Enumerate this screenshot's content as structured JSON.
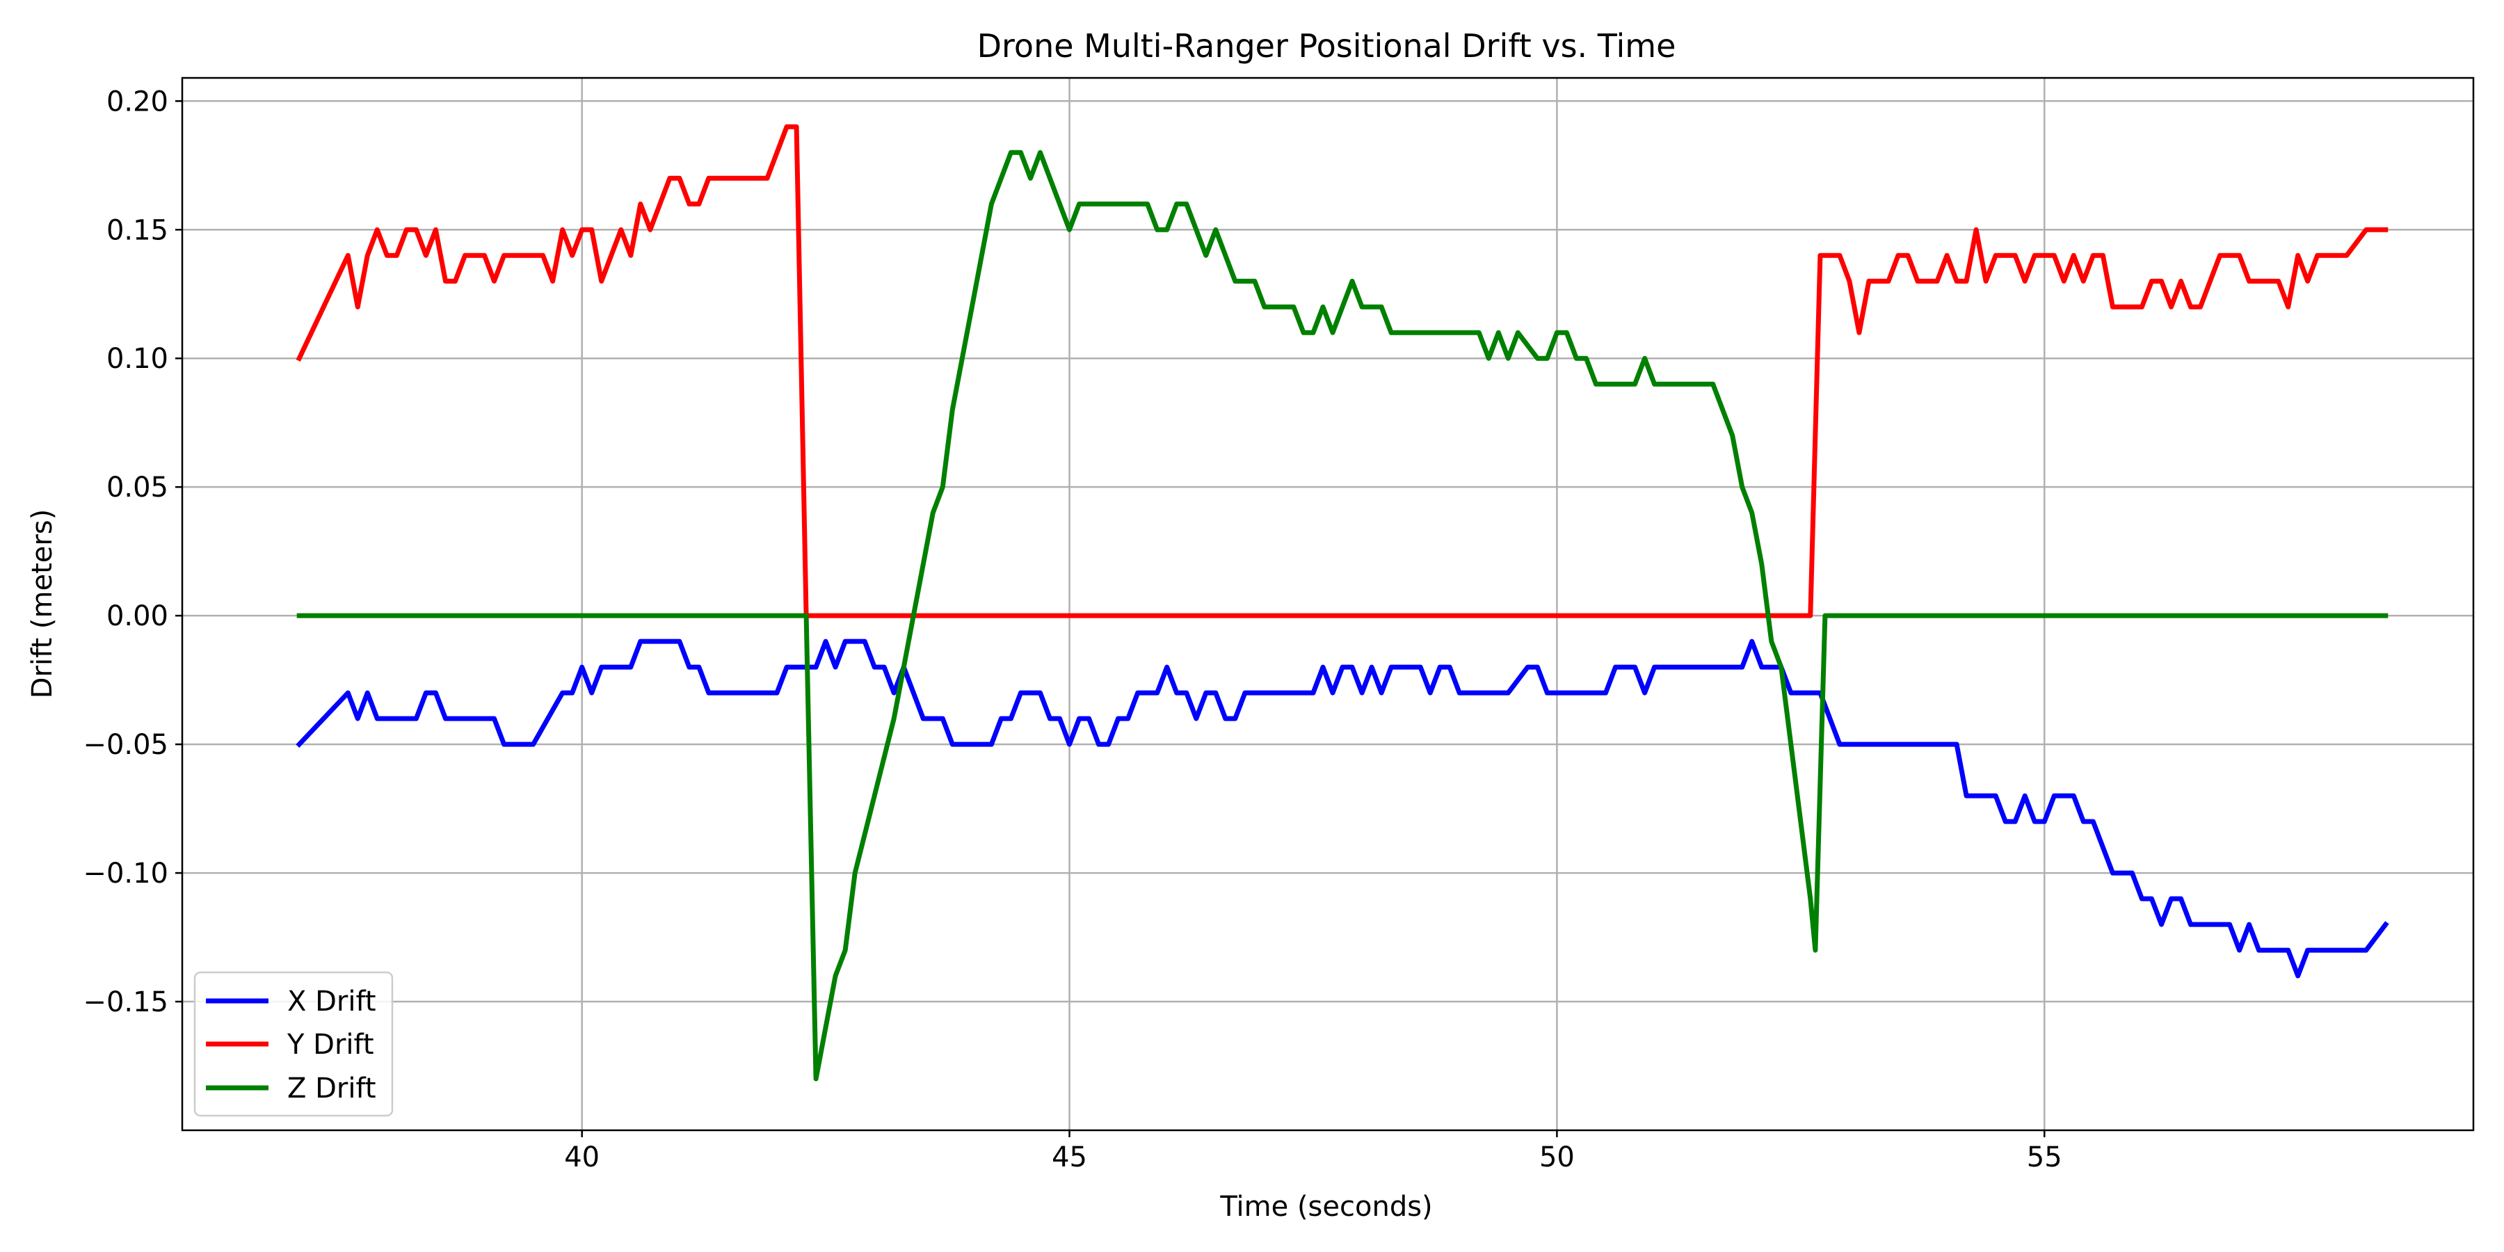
{
  "chart_data": {
    "type": "line",
    "title": "Drone Multi-Ranger Positional Drift vs. Time",
    "xlabel": "Time (seconds)",
    "ylabel": "Drift (meters)",
    "xlim": [
      35.9,
      59.4
    ],
    "ylim": [
      -0.2,
      0.209
    ],
    "xticks": [
      40,
      45,
      50,
      55
    ],
    "xtick_labels": [
      "40",
      "45",
      "50",
      "55"
    ],
    "yticks": [
      0.2,
      0.15,
      0.1,
      0.05,
      0.0,
      -0.05,
      -0.1,
      -0.15
    ],
    "ytick_labels": [
      "0.20",
      "0.15",
      "0.10",
      "0.05",
      "0.00",
      "−0.05",
      "−0.10",
      "−0.15"
    ],
    "grid": true,
    "legend_position": "bottom-left",
    "series": [
      {
        "name": "X Drift",
        "color": "#0000ff",
        "points": [
          [
            37.1,
            -0.05
          ],
          [
            37.6,
            -0.03
          ],
          [
            37.7,
            -0.04
          ],
          [
            37.8,
            -0.03
          ],
          [
            37.9,
            -0.04
          ],
          [
            38.3,
            -0.04
          ],
          [
            38.4,
            -0.03
          ],
          [
            38.5,
            -0.03
          ],
          [
            38.6,
            -0.04
          ],
          [
            39.1,
            -0.04
          ],
          [
            39.2,
            -0.05
          ],
          [
            39.5,
            -0.05
          ],
          [
            39.8,
            -0.03
          ],
          [
            39.9,
            -0.03
          ],
          [
            40.0,
            -0.02
          ],
          [
            40.1,
            -0.03
          ],
          [
            40.2,
            -0.02
          ],
          [
            40.5,
            -0.02
          ],
          [
            40.6,
            -0.01
          ],
          [
            41.0,
            -0.01
          ],
          [
            41.1,
            -0.02
          ],
          [
            41.2,
            -0.02
          ],
          [
            41.3,
            -0.03
          ],
          [
            42.0,
            -0.03
          ],
          [
            42.1,
            -0.02
          ],
          [
            42.4,
            -0.02
          ],
          [
            42.5,
            -0.01
          ],
          [
            42.6,
            -0.02
          ],
          [
            42.7,
            -0.01
          ],
          [
            42.9,
            -0.01
          ],
          [
            43.0,
            -0.02
          ],
          [
            43.1,
            -0.02
          ],
          [
            43.2,
            -0.03
          ],
          [
            43.3,
            -0.02
          ],
          [
            43.5,
            -0.04
          ],
          [
            43.7,
            -0.04
          ],
          [
            43.8,
            -0.05
          ],
          [
            44.2,
            -0.05
          ],
          [
            44.3,
            -0.04
          ],
          [
            44.4,
            -0.04
          ],
          [
            44.5,
            -0.03
          ],
          [
            44.7,
            -0.03
          ],
          [
            44.8,
            -0.04
          ],
          [
            44.9,
            -0.04
          ],
          [
            45.0,
            -0.05
          ],
          [
            45.1,
            -0.04
          ],
          [
            45.2,
            -0.04
          ],
          [
            45.3,
            -0.05
          ],
          [
            45.4,
            -0.05
          ],
          [
            45.5,
            -0.04
          ],
          [
            45.6,
            -0.04
          ],
          [
            45.7,
            -0.03
          ],
          [
            45.9,
            -0.03
          ],
          [
            46.0,
            -0.02
          ],
          [
            46.1,
            -0.03
          ],
          [
            46.2,
            -0.03
          ],
          [
            46.3,
            -0.04
          ],
          [
            46.4,
            -0.03
          ],
          [
            46.5,
            -0.03
          ],
          [
            46.6,
            -0.04
          ],
          [
            46.7,
            -0.04
          ],
          [
            46.8,
            -0.03
          ],
          [
            47.5,
            -0.03
          ],
          [
            47.6,
            -0.02
          ],
          [
            47.7,
            -0.03
          ],
          [
            47.8,
            -0.02
          ],
          [
            47.9,
            -0.02
          ],
          [
            48.0,
            -0.03
          ],
          [
            48.1,
            -0.02
          ],
          [
            48.2,
            -0.03
          ],
          [
            48.3,
            -0.02
          ],
          [
            48.6,
            -0.02
          ],
          [
            48.7,
            -0.03
          ],
          [
            48.8,
            -0.02
          ],
          [
            48.9,
            -0.02
          ],
          [
            49.0,
            -0.03
          ],
          [
            49.5,
            -0.03
          ],
          [
            49.7,
            -0.02
          ],
          [
            49.8,
            -0.02
          ],
          [
            49.9,
            -0.03
          ],
          [
            50.5,
            -0.03
          ],
          [
            50.6,
            -0.02
          ],
          [
            50.8,
            -0.02
          ],
          [
            50.9,
            -0.03
          ],
          [
            51.0,
            -0.02
          ],
          [
            51.9,
            -0.02
          ],
          [
            52.0,
            -0.01
          ],
          [
            52.1,
            -0.02
          ],
          [
            52.3,
            -0.02
          ],
          [
            52.4,
            -0.03
          ],
          [
            52.7,
            -0.03
          ],
          [
            52.9,
            -0.05
          ],
          [
            54.1,
            -0.05
          ],
          [
            54.2,
            -0.07
          ],
          [
            54.5,
            -0.07
          ],
          [
            54.6,
            -0.08
          ],
          [
            54.7,
            -0.08
          ],
          [
            54.8,
            -0.07
          ],
          [
            54.9,
            -0.08
          ],
          [
            55.0,
            -0.08
          ],
          [
            55.1,
            -0.07
          ],
          [
            55.3,
            -0.07
          ],
          [
            55.4,
            -0.08
          ],
          [
            55.5,
            -0.08
          ],
          [
            55.7,
            -0.1
          ],
          [
            55.9,
            -0.1
          ],
          [
            56.0,
            -0.11
          ],
          [
            56.1,
            -0.11
          ],
          [
            56.2,
            -0.12
          ],
          [
            56.3,
            -0.11
          ],
          [
            56.4,
            -0.11
          ],
          [
            56.5,
            -0.12
          ],
          [
            56.9,
            -0.12
          ],
          [
            57.0,
            -0.13
          ],
          [
            57.1,
            -0.12
          ],
          [
            57.2,
            -0.13
          ],
          [
            57.5,
            -0.13
          ],
          [
            57.6,
            -0.14
          ],
          [
            57.7,
            -0.13
          ],
          [
            58.2,
            -0.13
          ],
          [
            58.3,
            -0.13
          ],
          [
            58.5,
            -0.12
          ]
        ]
      },
      {
        "name": "Y Drift",
        "color": "#ff0000",
        "points": [
          [
            37.1,
            0.1
          ],
          [
            37.6,
            0.14
          ],
          [
            37.7,
            0.12
          ],
          [
            37.8,
            0.14
          ],
          [
            37.9,
            0.15
          ],
          [
            38.0,
            0.14
          ],
          [
            38.1,
            0.14
          ],
          [
            38.2,
            0.15
          ],
          [
            38.3,
            0.15
          ],
          [
            38.4,
            0.14
          ],
          [
            38.5,
            0.15
          ],
          [
            38.6,
            0.13
          ],
          [
            38.7,
            0.13
          ],
          [
            38.8,
            0.14
          ],
          [
            39.0,
            0.14
          ],
          [
            39.1,
            0.13
          ],
          [
            39.2,
            0.14
          ],
          [
            39.6,
            0.14
          ],
          [
            39.7,
            0.13
          ],
          [
            39.8,
            0.15
          ],
          [
            39.9,
            0.14
          ],
          [
            40.0,
            0.15
          ],
          [
            40.1,
            0.15
          ],
          [
            40.2,
            0.13
          ],
          [
            40.4,
            0.15
          ],
          [
            40.5,
            0.14
          ],
          [
            40.6,
            0.16
          ],
          [
            40.7,
            0.15
          ],
          [
            40.9,
            0.17
          ],
          [
            41.0,
            0.17
          ],
          [
            41.1,
            0.16
          ],
          [
            41.2,
            0.16
          ],
          [
            41.3,
            0.17
          ],
          [
            41.9,
            0.17
          ],
          [
            42.1,
            0.19
          ],
          [
            42.2,
            0.19
          ],
          [
            42.3,
            0.0
          ],
          [
            52.6,
            0.0
          ],
          [
            52.7,
            0.14
          ],
          [
            52.9,
            0.14
          ],
          [
            53.0,
            0.13
          ],
          [
            53.1,
            0.11
          ],
          [
            53.2,
            0.13
          ],
          [
            53.4,
            0.13
          ],
          [
            53.5,
            0.14
          ],
          [
            53.6,
            0.14
          ],
          [
            53.7,
            0.13
          ],
          [
            53.9,
            0.13
          ],
          [
            54.0,
            0.14
          ],
          [
            54.1,
            0.13
          ],
          [
            54.2,
            0.13
          ],
          [
            54.3,
            0.15
          ],
          [
            54.4,
            0.13
          ],
          [
            54.5,
            0.14
          ],
          [
            54.7,
            0.14
          ],
          [
            54.8,
            0.13
          ],
          [
            54.9,
            0.14
          ],
          [
            55.1,
            0.14
          ],
          [
            55.2,
            0.13
          ],
          [
            55.3,
            0.14
          ],
          [
            55.4,
            0.13
          ],
          [
            55.5,
            0.14
          ],
          [
            55.6,
            0.14
          ],
          [
            55.7,
            0.12
          ],
          [
            56.0,
            0.12
          ],
          [
            56.1,
            0.13
          ],
          [
            56.2,
            0.13
          ],
          [
            56.3,
            0.12
          ],
          [
            56.4,
            0.13
          ],
          [
            56.5,
            0.12
          ],
          [
            56.6,
            0.12
          ],
          [
            56.8,
            0.14
          ],
          [
            57.0,
            0.14
          ],
          [
            57.1,
            0.13
          ],
          [
            57.4,
            0.13
          ],
          [
            57.5,
            0.12
          ],
          [
            57.6,
            0.14
          ],
          [
            57.7,
            0.13
          ],
          [
            57.8,
            0.14
          ],
          [
            58.1,
            0.14
          ],
          [
            58.3,
            0.15
          ],
          [
            58.5,
            0.15
          ]
        ]
      },
      {
        "name": "Z Drift",
        "color": "#008000",
        "points": [
          [
            37.1,
            0.0
          ],
          [
            42.3,
            0.0
          ],
          [
            42.4,
            -0.18
          ],
          [
            42.6,
            -0.14
          ],
          [
            42.7,
            -0.13
          ],
          [
            42.8,
            -0.1
          ],
          [
            43.0,
            -0.07
          ],
          [
            43.2,
            -0.04
          ],
          [
            43.3,
            -0.02
          ],
          [
            43.4,
            0.0
          ],
          [
            43.5,
            0.02
          ],
          [
            43.6,
            0.04
          ],
          [
            43.7,
            0.05
          ],
          [
            43.8,
            0.08
          ],
          [
            44.0,
            0.12
          ],
          [
            44.1,
            0.14
          ],
          [
            44.2,
            0.16
          ],
          [
            44.4,
            0.18
          ],
          [
            44.5,
            0.18
          ],
          [
            44.6,
            0.17
          ],
          [
            44.7,
            0.18
          ],
          [
            44.9,
            0.16
          ],
          [
            45.0,
            0.15
          ],
          [
            45.1,
            0.16
          ],
          [
            45.8,
            0.16
          ],
          [
            45.9,
            0.15
          ],
          [
            46.0,
            0.15
          ],
          [
            46.1,
            0.16
          ],
          [
            46.2,
            0.16
          ],
          [
            46.4,
            0.14
          ],
          [
            46.5,
            0.15
          ],
          [
            46.7,
            0.13
          ],
          [
            46.9,
            0.13
          ],
          [
            47.0,
            0.12
          ],
          [
            47.3,
            0.12
          ],
          [
            47.4,
            0.11
          ],
          [
            47.5,
            0.11
          ],
          [
            47.6,
            0.12
          ],
          [
            47.7,
            0.11
          ],
          [
            47.9,
            0.13
          ],
          [
            48.0,
            0.12
          ],
          [
            48.2,
            0.12
          ],
          [
            48.3,
            0.11
          ],
          [
            49.2,
            0.11
          ],
          [
            49.3,
            0.1
          ],
          [
            49.4,
            0.11
          ],
          [
            49.5,
            0.1
          ],
          [
            49.6,
            0.11
          ],
          [
            49.8,
            0.1
          ],
          [
            49.9,
            0.1
          ],
          [
            50.0,
            0.11
          ],
          [
            50.1,
            0.11
          ],
          [
            50.2,
            0.1
          ],
          [
            50.3,
            0.1
          ],
          [
            50.4,
            0.09
          ],
          [
            50.5,
            0.09
          ],
          [
            50.8,
            0.09
          ],
          [
            50.9,
            0.1
          ],
          [
            51.0,
            0.09
          ],
          [
            51.6,
            0.09
          ],
          [
            51.8,
            0.07
          ],
          [
            51.9,
            0.05
          ],
          [
            52.0,
            0.04
          ],
          [
            52.1,
            0.02
          ],
          [
            52.2,
            -0.01
          ],
          [
            52.3,
            -0.02
          ],
          [
            52.4,
            -0.05
          ],
          [
            52.5,
            -0.08
          ],
          [
            52.6,
            -0.11
          ],
          [
            52.65,
            -0.13
          ],
          [
            52.75,
            0.0
          ],
          [
            58.5,
            0.0
          ]
        ]
      }
    ]
  }
}
